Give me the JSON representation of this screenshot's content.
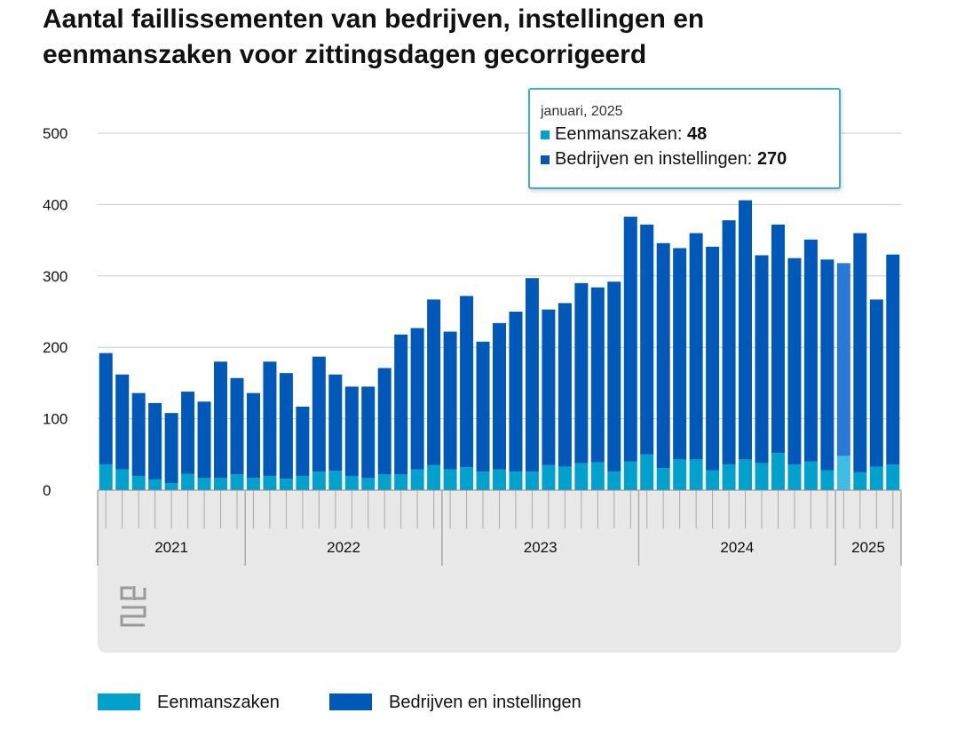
{
  "chart_data": {
    "type": "stacked-bar",
    "title": "Aantal faillissementen van bedrijven, instellingen en eenmanszaken voor zittingsdagen gecorrigeerd",
    "categories": [
      null,
      null,
      null,
      null,
      null,
      null,
      null,
      null,
      null,
      null,
      null,
      null,
      null,
      null,
      null,
      null,
      null,
      null,
      null,
      null,
      null,
      null,
      null,
      null,
      null,
      null,
      null,
      null,
      null,
      null,
      null,
      null,
      null,
      null,
      null,
      null,
      null,
      null,
      null,
      null,
      null,
      null,
      null,
      null,
      null,
      null,
      null,
      null,
      null
    ],
    "x_groups": [
      {
        "label": "2021",
        "span": 9
      },
      {
        "label": "2022",
        "span": 12
      },
      {
        "label": "2023",
        "span": 12
      },
      {
        "label": "2024",
        "span": 12
      },
      {
        "label": "2025",
        "span": 4
      }
    ],
    "series": [
      {
        "name": "Eenmanszaken",
        "color": "#00a1cd",
        "highlight_color": "#3dbde6",
        "values": [
          36,
          29,
          20,
          15,
          10,
          23,
          17,
          17,
          22,
          17,
          20,
          16,
          20,
          26,
          27,
          20,
          17,
          22,
          22,
          29,
          35,
          29,
          32,
          26,
          29,
          26,
          26,
          35,
          33,
          38,
          39,
          26,
          40,
          50,
          31,
          43,
          43,
          28,
          36,
          43,
          38,
          52,
          36,
          40,
          28,
          48,
          25,
          33,
          36
        ]
      },
      {
        "name": "Bedrijven en instellingen",
        "color": "#0058b8",
        "highlight_color": "#2a78d8",
        "values": [
          156,
          133,
          116,
          107,
          98,
          115,
          107,
          163,
          135,
          119,
          160,
          148,
          97,
          161,
          135,
          125,
          128,
          149,
          196,
          198,
          232,
          193,
          240,
          182,
          205,
          224,
          271,
          218,
          229,
          252,
          245,
          266,
          343,
          322,
          315,
          296,
          317,
          313,
          342,
          363,
          291,
          320,
          289,
          311,
          295,
          270,
          335,
          234,
          294
        ]
      }
    ],
    "ylim": [
      0,
      500
    ],
    "yticks": [
      0,
      100,
      200,
      300,
      400,
      500
    ],
    "grid": true,
    "highlight_index": 45,
    "tooltip": {
      "title": "januari, 2025",
      "labels": [
        "Eenmanszaken:",
        "Bedrijven en instellingen:"
      ]
    },
    "legend": "bottom-left"
  }
}
